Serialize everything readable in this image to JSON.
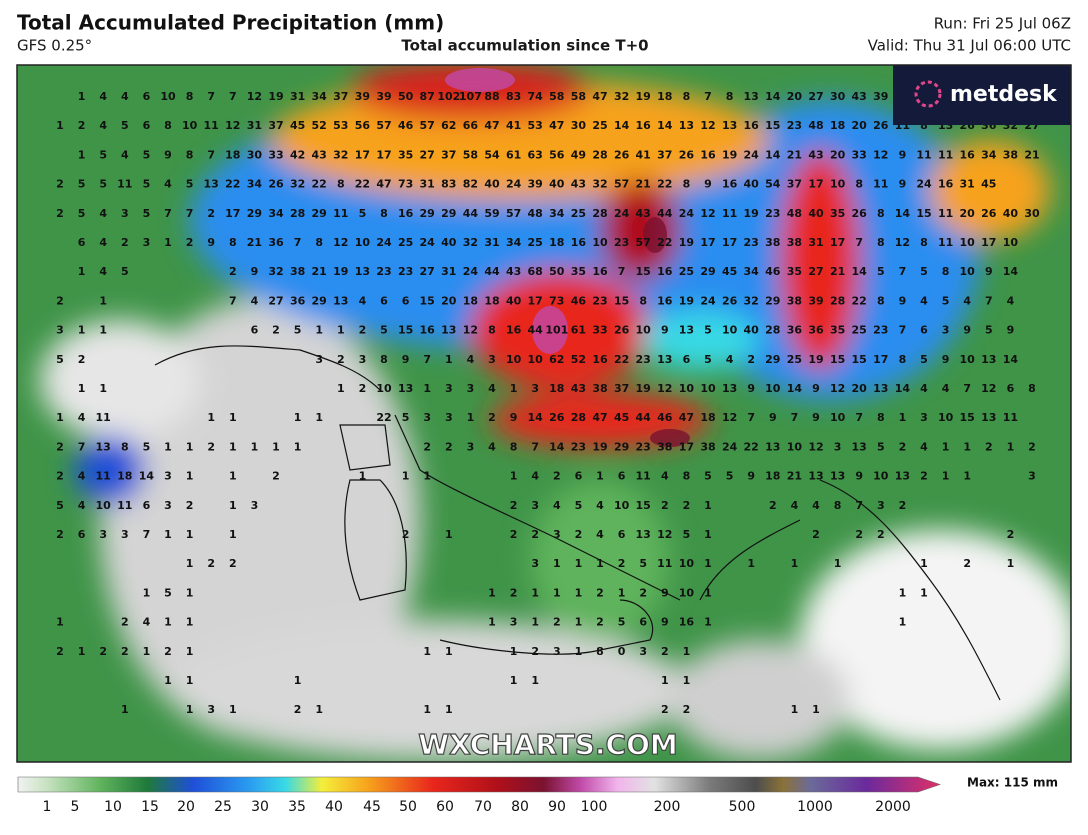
{
  "header": {
    "title": "Total Accumulated Precipitation (mm)",
    "model": "GFS 0.25°",
    "subtitle": "Total accumulation since T+0",
    "run": "Run: Fri 25 Jul 06Z",
    "valid": "Valid: Thu 31 Jul 06:00 UTC"
  },
  "logo": "metdesk",
  "watermark": "WXCHARTS.COM",
  "map_values": [
    [
      null,
      1,
      4,
      4,
      6,
      10,
      8,
      7,
      7,
      12,
      19,
      31,
      34,
      37,
      39,
      39,
      50,
      87,
      102,
      107,
      88,
      83,
      74,
      58,
      58,
      47,
      32,
      19,
      18,
      8,
      7,
      8,
      13,
      14,
      20,
      27,
      30,
      43,
      39,
      null,
      null,
      null,
      null,
      null,
      null,
      null,
      null
    ],
    [
      1,
      2,
      4,
      5,
      6,
      8,
      10,
      11,
      12,
      31,
      37,
      45,
      52,
      53,
      56,
      57,
      46,
      57,
      62,
      66,
      47,
      41,
      53,
      47,
      30,
      25,
      14,
      16,
      14,
      13,
      12,
      13,
      16,
      15,
      23,
      48,
      18,
      20,
      26,
      11,
      8,
      13,
      26,
      36,
      32,
      27,
      null
    ],
    [
      null,
      1,
      5,
      4,
      5,
      9,
      8,
      7,
      18,
      30,
      33,
      42,
      43,
      32,
      17,
      17,
      35,
      27,
      37,
      58,
      54,
      61,
      63,
      56,
      49,
      28,
      26,
      41,
      37,
      26,
      16,
      19,
      24,
      14,
      21,
      43,
      20,
      33,
      12,
      9,
      11,
      11,
      16,
      34,
      38,
      21,
      null
    ],
    [
      2,
      5,
      5,
      11,
      5,
      4,
      5,
      13,
      22,
      34,
      26,
      32,
      22,
      8,
      22,
      47,
      73,
      31,
      83,
      82,
      40,
      24,
      39,
      40,
      43,
      32,
      57,
      21,
      22,
      8,
      9,
      16,
      40,
      54,
      37,
      17,
      10,
      8,
      11,
      9,
      24,
      16,
      31,
      45,
      null,
      null,
      null
    ],
    [
      2,
      5,
      4,
      3,
      5,
      7,
      7,
      2,
      17,
      29,
      34,
      28,
      29,
      11,
      5,
      8,
      16,
      29,
      29,
      44,
      59,
      57,
      48,
      34,
      25,
      28,
      24,
      43,
      44,
      24,
      12,
      11,
      19,
      23,
      48,
      40,
      35,
      26,
      8,
      14,
      15,
      11,
      20,
      26,
      40,
      30,
      null
    ],
    [
      null,
      6,
      4,
      2,
      3,
      1,
      2,
      9,
      8,
      21,
      36,
      7,
      8,
      12,
      10,
      24,
      25,
      24,
      40,
      32,
      31,
      34,
      25,
      18,
      16,
      10,
      23,
      57,
      22,
      19,
      17,
      17,
      23,
      38,
      38,
      31,
      17,
      7,
      8,
      12,
      8,
      11,
      10,
      17,
      10,
      null,
      null
    ],
    [
      null,
      1,
      4,
      5,
      null,
      null,
      null,
      null,
      2,
      9,
      32,
      38,
      21,
      19,
      13,
      23,
      23,
      27,
      31,
      24,
      44,
      43,
      68,
      50,
      35,
      16,
      7,
      15,
      16,
      25,
      29,
      45,
      34,
      46,
      35,
      27,
      21,
      14,
      5,
      7,
      5,
      8,
      10,
      9,
      14,
      null,
      null
    ],
    [
      2,
      null,
      1,
      null,
      null,
      null,
      null,
      null,
      7,
      4,
      27,
      36,
      29,
      13,
      4,
      6,
      6,
      15,
      20,
      18,
      18,
      40,
      17,
      73,
      46,
      23,
      15,
      8,
      16,
      19,
      24,
      26,
      32,
      29,
      38,
      39,
      28,
      22,
      8,
      9,
      4,
      5,
      4,
      7,
      4,
      null,
      null
    ],
    [
      3,
      1,
      1,
      null,
      null,
      null,
      null,
      null,
      null,
      6,
      2,
      5,
      1,
      1,
      2,
      5,
      15,
      16,
      13,
      12,
      8,
      16,
      44,
      101,
      61,
      33,
      26,
      10,
      9,
      13,
      5,
      10,
      40,
      28,
      36,
      36,
      35,
      25,
      23,
      7,
      6,
      3,
      9,
      5,
      9,
      null,
      null
    ],
    [
      5,
      2,
      null,
      null,
      null,
      null,
      null,
      null,
      null,
      null,
      null,
      null,
      3,
      2,
      3,
      8,
      9,
      7,
      1,
      4,
      3,
      10,
      10,
      62,
      52,
      16,
      22,
      23,
      13,
      6,
      5,
      4,
      2,
      29,
      25,
      19,
      15,
      15,
      17,
      8,
      5,
      9,
      10,
      13,
      14,
      null,
      null
    ],
    [
      null,
      1,
      1,
      null,
      null,
      null,
      null,
      null,
      null,
      null,
      null,
      null,
      null,
      1,
      2,
      10,
      13,
      1,
      3,
      3,
      4,
      1,
      3,
      18,
      43,
      38,
      37,
      19,
      12,
      10,
      10,
      13,
      9,
      10,
      14,
      9,
      12,
      20,
      13,
      14,
      4,
      4,
      7,
      12,
      6,
      8,
      null
    ],
    [
      1,
      4,
      11,
      null,
      null,
      null,
      null,
      1,
      1,
      null,
      null,
      1,
      1,
      null,
      null,
      22,
      5,
      3,
      3,
      1,
      2,
      9,
      14,
      26,
      28,
      47,
      45,
      44,
      46,
      47,
      18,
      12,
      7,
      9,
      7,
      9,
      10,
      7,
      8,
      1,
      3,
      10,
      15,
      13,
      11,
      null,
      null
    ],
    [
      2,
      7,
      13,
      8,
      5,
      1,
      1,
      2,
      1,
      1,
      1,
      1,
      null,
      null,
      null,
      null,
      null,
      2,
      2,
      3,
      4,
      8,
      7,
      14,
      23,
      19,
      29,
      23,
      38,
      17,
      38,
      24,
      22,
      13,
      10,
      12,
      3,
      13,
      5,
      2,
      4,
      1,
      1,
      2,
      1,
      2,
      null
    ],
    [
      2,
      4,
      11,
      18,
      14,
      3,
      1,
      null,
      1,
      null,
      2,
      null,
      null,
      null,
      1,
      null,
      1,
      1,
      null,
      null,
      null,
      1,
      4,
      2,
      6,
      1,
      6,
      11,
      4,
      8,
      5,
      5,
      9,
      18,
      21,
      13,
      13,
      9,
      10,
      13,
      2,
      1,
      1,
      null,
      null,
      3,
      null
    ],
    [
      5,
      4,
      10,
      11,
      6,
      3,
      2,
      null,
      1,
      3,
      null,
      null,
      null,
      null,
      null,
      null,
      null,
      null,
      null,
      null,
      null,
      2,
      3,
      4,
      5,
      4,
      10,
      15,
      2,
      2,
      1,
      null,
      null,
      2,
      4,
      4,
      8,
      7,
      3,
      2,
      null,
      null,
      null,
      null,
      null,
      null,
      null
    ],
    [
      2,
      6,
      3,
      3,
      7,
      1,
      1,
      null,
      1,
      null,
      null,
      null,
      null,
      null,
      null,
      null,
      2,
      null,
      1,
      null,
      null,
      2,
      2,
      3,
      2,
      4,
      6,
      13,
      12,
      5,
      1,
      null,
      null,
      null,
      null,
      2,
      null,
      2,
      2,
      null,
      null,
      null,
      null,
      null,
      2,
      null,
      null
    ],
    [
      null,
      null,
      null,
      null,
      null,
      null,
      1,
      2,
      2,
      null,
      null,
      null,
      null,
      null,
      null,
      null,
      null,
      null,
      null,
      null,
      null,
      null,
      3,
      1,
      1,
      1,
      2,
      5,
      11,
      10,
      1,
      null,
      1,
      null,
      1,
      null,
      1,
      null,
      null,
      null,
      1,
      null,
      2,
      null,
      1,
      null,
      null
    ],
    [
      null,
      null,
      null,
      null,
      1,
      5,
      1,
      null,
      null,
      null,
      null,
      null,
      null,
      null,
      null,
      null,
      null,
      null,
      null,
      null,
      1,
      2,
      1,
      1,
      1,
      2,
      1,
      2,
      9,
      10,
      1,
      null,
      null,
      null,
      null,
      null,
      null,
      null,
      null,
      1,
      1,
      null,
      null,
      null,
      null,
      null,
      null
    ],
    [
      1,
      null,
      null,
      2,
      4,
      1,
      1,
      null,
      null,
      null,
      null,
      null,
      null,
      null,
      null,
      null,
      null,
      null,
      null,
      null,
      1,
      3,
      1,
      2,
      1,
      2,
      5,
      6,
      9,
      16,
      1,
      null,
      null,
      null,
      null,
      null,
      null,
      null,
      null,
      1,
      null,
      null,
      null,
      null,
      null,
      null,
      null
    ],
    [
      2,
      1,
      2,
      2,
      1,
      2,
      1,
      null,
      null,
      null,
      null,
      null,
      null,
      null,
      null,
      null,
      null,
      1,
      1,
      null,
      null,
      1,
      2,
      3,
      1,
      8,
      0,
      3,
      2,
      1,
      null,
      null,
      null,
      null,
      null,
      null,
      null,
      null,
      null,
      null,
      null,
      null,
      null,
      null,
      null,
      null,
      null
    ],
    [
      null,
      null,
      null,
      null,
      null,
      1,
      1,
      null,
      null,
      null,
      null,
      1,
      null,
      null,
      null,
      null,
      null,
      null,
      null,
      null,
      null,
      1,
      1,
      null,
      null,
      null,
      null,
      null,
      1,
      1,
      null,
      null,
      null,
      null,
      null,
      null,
      null,
      null,
      null,
      null,
      null,
      null,
      null,
      null,
      null,
      null,
      null
    ],
    [
      null,
      null,
      null,
      1,
      null,
      null,
      1,
      3,
      1,
      null,
      null,
      2,
      1,
      null,
      null,
      null,
      null,
      1,
      1,
      null,
      null,
      null,
      null,
      null,
      null,
      null,
      null,
      null,
      2,
      2,
      null,
      null,
      null,
      null,
      1,
      1,
      null,
      null,
      null,
      null,
      null,
      null,
      null,
      null,
      null,
      null,
      null
    ]
  ],
  "scale_ticks": [
    1,
    5,
    10,
    15,
    20,
    25,
    30,
    35,
    40,
    45,
    50,
    60,
    70,
    80,
    90,
    100,
    200,
    500,
    1000,
    2000
  ],
  "max_label": "Max: 115 mm"
}
